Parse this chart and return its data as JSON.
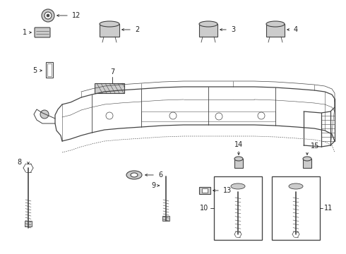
{
  "background_color": "#ffffff",
  "line_color": "#444444",
  "dark_color": "#222222",
  "gray_color": "#888888",
  "light_gray": "#cccccc",
  "fig_w": 4.9,
  "fig_h": 3.6,
  "dpi": 100,
  "parts_label_fs": 7,
  "arrow_lw": 0.6,
  "part_lw": 0.8,
  "frame_lw": 0.9
}
